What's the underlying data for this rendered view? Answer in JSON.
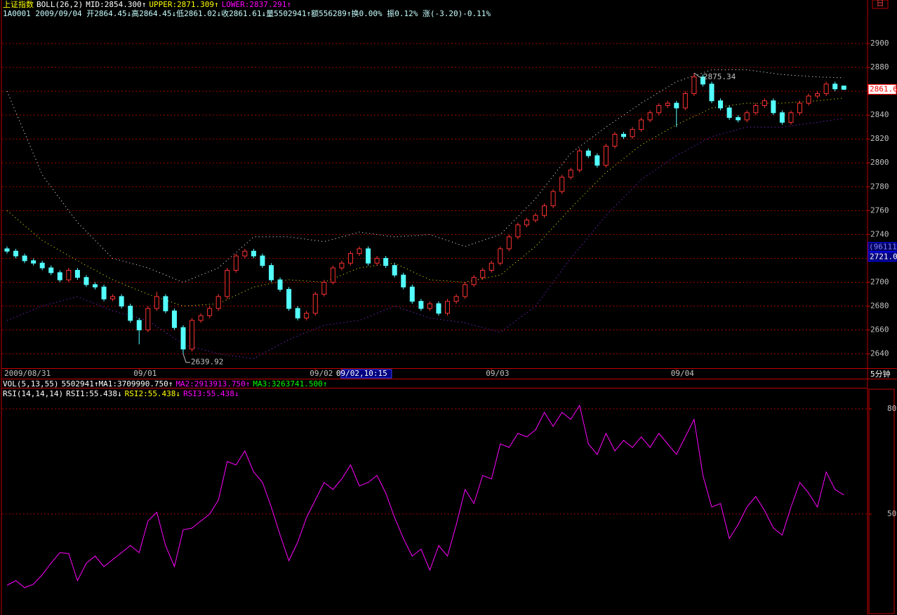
{
  "header": {
    "line1": [
      {
        "text": "上证指数",
        "color": "#ffff00"
      },
      {
        "text": "BOLL(26,2)",
        "color": "#ffffff"
      },
      {
        "text": "MID:2854.300↑",
        "color": "#ffffff"
      },
      {
        "text": "UPPER:2871.309↑",
        "color": "#ffff00"
      },
      {
        "text": "LOWER:2837.291↑",
        "color": "#ff00ff"
      }
    ],
    "line2": [
      {
        "text": "1A0001 2009/09/04 开2864.45↓高2864.45↓低2861.02↓收2861.61↓量5502941↑额556289↑换0.00% 振0.12% 涨(-3.20)-0.11%",
        "color": "#c8ffff"
      }
    ],
    "vol_line": [
      {
        "text": "VOL(5,13,55)",
        "color": "#ffffff"
      },
      {
        "text": "5502941↑MA1:3709990.750↑",
        "color": "#ffffff"
      },
      {
        "text": "MA2:2913913.750↑",
        "color": "#ff00ff"
      },
      {
        "text": "MA3:3263741.500↑",
        "color": "#00ff00"
      }
    ],
    "rsi_line": [
      {
        "text": "RSI(14,14,14)",
        "color": "#ffffff"
      },
      {
        "text": "RSI1:55.438↓",
        "color": "#ffffff"
      },
      {
        "text": "RSI2:55.438↓",
        "color": "#ffff00"
      },
      {
        "text": "RSI3:55.438↓",
        "color": "#ff00ff"
      }
    ],
    "period": "5分钟",
    "corner_button": "日"
  },
  "chart_data": [
    {
      "type": "candlestick",
      "up_color": "#ff3232",
      "down_color": "#54ffff",
      "grid": true,
      "ylim": [
        2628,
        2920
      ],
      "yticks": [
        2640,
        2660,
        2680,
        2700,
        2720,
        2740,
        2760,
        2780,
        2800,
        2820,
        2840,
        2860,
        2880,
        2900
      ],
      "categories": [
        "2009/08/31",
        null,
        null,
        null,
        null,
        null,
        null,
        null,
        null,
        null,
        null,
        null,
        null,
        null,
        null,
        "09/01",
        null,
        null,
        null,
        null,
        null,
        null,
        null,
        null,
        null,
        null,
        null,
        null,
        null,
        null,
        null,
        null,
        null,
        null,
        null,
        "09/02",
        null,
        null,
        "09/02,10:15",
        null,
        null,
        null,
        null,
        null,
        null,
        null,
        null,
        null,
        null,
        null,
        null,
        null,
        null,
        null,
        null,
        "09/03",
        null,
        null,
        null,
        null,
        null,
        null,
        null,
        null,
        null,
        null,
        null,
        null,
        null,
        null,
        null,
        null,
        null,
        null,
        null,
        null,
        "09/04",
        null,
        null,
        null,
        null,
        null,
        null,
        null,
        null,
        null,
        null,
        null,
        null,
        null,
        null,
        null,
        null,
        null,
        null,
        null
      ],
      "selected_index": 38,
      "ohlc": [
        [
          2728,
          2730,
          2724,
          2726
        ],
        [
          2726,
          2728,
          2720,
          2722
        ],
        [
          2722,
          2724,
          2716,
          2718
        ],
        [
          2718,
          2720,
          2714,
          2716
        ],
        [
          2716,
          2718,
          2710,
          2712
        ],
        [
          2712,
          2714,
          2706,
          2708
        ],
        [
          2708,
          2710,
          2700,
          2702
        ],
        [
          2702,
          2712,
          2700,
          2710
        ],
        [
          2710,
          2712,
          2702,
          2704
        ],
        [
          2704,
          2706,
          2696,
          2698
        ],
        [
          2698,
          2700,
          2694,
          2696
        ],
        [
          2696,
          2698,
          2684,
          2686
        ],
        [
          2686,
          2690,
          2684,
          2688
        ],
        [
          2688,
          2690,
          2678,
          2680
        ],
        [
          2680,
          2682,
          2666,
          2668
        ],
        [
          2668,
          2670,
          2648,
          2660
        ],
        [
          2660,
          2680,
          2658,
          2678
        ],
        [
          2678,
          2692,
          2676,
          2688
        ],
        [
          2688,
          2690,
          2674,
          2676
        ],
        [
          2676,
          2678,
          2660,
          2662
        ],
        [
          2662,
          2664,
          2639.92,
          2644
        ],
        [
          2644,
          2670,
          2642,
          2668
        ],
        [
          2668,
          2674,
          2666,
          2672
        ],
        [
          2672,
          2680,
          2670,
          2678
        ],
        [
          2678,
          2690,
          2676,
          2688
        ],
        [
          2688,
          2712,
          2686,
          2710
        ],
        [
          2710,
          2724,
          2708,
          2722
        ],
        [
          2722,
          2728,
          2720,
          2726
        ],
        [
          2726,
          2728,
          2720,
          2722
        ],
        [
          2722,
          2724,
          2712,
          2714
        ],
        [
          2714,
          2716,
          2700,
          2702
        ],
        [
          2702,
          2704,
          2692,
          2694
        ],
        [
          2694,
          2696,
          2676,
          2678
        ],
        [
          2678,
          2680,
          2668,
          2670
        ],
        [
          2670,
          2676,
          2668,
          2674
        ],
        [
          2674,
          2692,
          2672,
          2690
        ],
        [
          2690,
          2702,
          2688,
          2700
        ],
        [
          2700,
          2714,
          2698,
          2712
        ],
        [
          2712,
          2718,
          2710,
          2716
        ],
        [
          2716,
          2726,
          2714,
          2724
        ],
        [
          2724,
          2730,
          2722,
          2728
        ],
        [
          2728,
          2730,
          2714,
          2716
        ],
        [
          2716,
          2722,
          2714,
          2720
        ],
        [
          2720,
          2722,
          2712,
          2714
        ],
        [
          2714,
          2716,
          2704,
          2706
        ],
        [
          2706,
          2708,
          2694,
          2696
        ],
        [
          2696,
          2698,
          2682,
          2684
        ],
        [
          2684,
          2686,
          2676,
          2678
        ],
        [
          2678,
          2684,
          2676,
          2682
        ],
        [
          2682,
          2684,
          2672,
          2674
        ],
        [
          2674,
          2686,
          2672,
          2684
        ],
        [
          2684,
          2690,
          2682,
          2688
        ],
        [
          2688,
          2700,
          2686,
          2698
        ],
        [
          2698,
          2706,
          2696,
          2704
        ],
        [
          2704,
          2712,
          2702,
          2710
        ],
        [
          2710,
          2718,
          2708,
          2716
        ],
        [
          2716,
          2730,
          2714,
          2728
        ],
        [
          2728,
          2740,
          2726,
          2738
        ],
        [
          2738,
          2750,
          2736,
          2748
        ],
        [
          2748,
          2754,
          2746,
          2752
        ],
        [
          2752,
          2758,
          2750,
          2756
        ],
        [
          2756,
          2766,
          2754,
          2764
        ],
        [
          2764,
          2778,
          2762,
          2776
        ],
        [
          2776,
          2790,
          2774,
          2788
        ],
        [
          2788,
          2796,
          2786,
          2794
        ],
        [
          2794,
          2812,
          2792,
          2810
        ],
        [
          2810,
          2812,
          2804,
          2806
        ],
        [
          2806,
          2808,
          2796,
          2798
        ],
        [
          2798,
          2816,
          2796,
          2814
        ],
        [
          2814,
          2826,
          2812,
          2824
        ],
        [
          2824,
          2826,
          2820,
          2822
        ],
        [
          2822,
          2830,
          2820,
          2828
        ],
        [
          2828,
          2838,
          2826,
          2836
        ],
        [
          2836,
          2844,
          2834,
          2842
        ],
        [
          2842,
          2850,
          2840,
          2848
        ],
        [
          2848,
          2852,
          2846,
          2850
        ],
        [
          2850,
          2852,
          2830,
          2846
        ],
        [
          2846,
          2860,
          2844,
          2858
        ],
        [
          2858,
          2875.34,
          2856,
          2872
        ],
        [
          2872,
          2874,
          2864,
          2866
        ],
        [
          2866,
          2868,
          2850,
          2852
        ],
        [
          2852,
          2854,
          2844,
          2846
        ],
        [
          2846,
          2848,
          2836,
          2838
        ],
        [
          2838,
          2840,
          2834,
          2836
        ],
        [
          2836,
          2844,
          2834,
          2842
        ],
        [
          2842,
          2850,
          2840,
          2848
        ],
        [
          2848,
          2854,
          2846,
          2852
        ],
        [
          2852,
          2854,
          2840,
          2842
        ],
        [
          2842,
          2844,
          2832,
          2834
        ],
        [
          2834,
          2844,
          2832,
          2842
        ],
        [
          2842,
          2852,
          2840,
          2850
        ],
        [
          2850,
          2858,
          2848,
          2856
        ],
        [
          2856,
          2860,
          2854,
          2858
        ],
        [
          2858,
          2868,
          2856,
          2866
        ],
        [
          2866,
          2868,
          2860,
          2862
        ],
        [
          2864.45,
          2864.45,
          2861.02,
          2861.61
        ]
      ],
      "overlay_x": [
        0,
        4,
        8,
        12,
        16,
        20,
        24,
        28,
        32,
        36,
        40,
        44,
        48,
        52,
        56,
        60,
        64,
        68,
        72,
        76,
        80,
        84,
        88,
        92,
        95
      ],
      "overlays": [
        {
          "color": "#ffffff",
          "values": [
            2860,
            2790,
            2750,
            2720,
            2712,
            2700,
            2712,
            2738,
            2738,
            2734,
            2742,
            2738,
            2740,
            2730,
            2740,
            2770,
            2808,
            2830,
            2850,
            2868,
            2878,
            2878,
            2874,
            2872,
            2871.309
          ]
        },
        {
          "color": "#ffff00",
          "values": [
            2760,
            2735,
            2718,
            2702,
            2690,
            2680,
            2682,
            2696,
            2702,
            2700,
            2712,
            2716,
            2702,
            2700,
            2706,
            2730,
            2762,
            2792,
            2815,
            2832,
            2846,
            2850,
            2850,
            2852,
            2854.3
          ]
        },
        {
          "color": "#9933ff",
          "values": [
            2668,
            2680,
            2688,
            2676,
            2668,
            2648,
            2640,
            2636,
            2652,
            2664,
            2668,
            2680,
            2670,
            2666,
            2658,
            2680,
            2720,
            2756,
            2786,
            2806,
            2822,
            2830,
            2830,
            2834,
            2837.291
          ]
        }
      ],
      "last_price": 2861.6,
      "crosshair": {
        "value": 2721.04,
        "volume_label": "(96111)"
      }
    },
    {
      "type": "line",
      "color": "#ff00ff",
      "grid": true,
      "ylim": [
        21.2,
        86
      ],
      "yticks": [
        50,
        80
      ],
      "values": [
        29.7,
        31,
        29,
        30,
        32.7,
        36,
        39,
        38.7,
        31,
        36,
        38,
        35,
        37,
        39,
        41,
        39,
        48,
        50.5,
        41,
        35,
        45.5,
        46,
        48,
        50,
        54,
        65,
        64,
        68,
        62,
        59,
        52,
        44,
        36.7,
        42,
        49,
        54,
        59,
        57,
        60,
        64,
        58,
        59,
        61,
        56,
        49,
        43,
        38,
        40,
        34,
        41,
        38,
        47,
        57,
        53,
        61,
        60,
        70,
        69,
        73,
        72,
        74,
        79,
        75,
        79,
        77,
        81,
        70,
        67,
        73,
        68,
        71,
        69,
        72,
        69,
        73,
        70,
        67,
        72,
        77,
        61,
        52,
        53,
        43,
        47,
        52,
        55,
        51,
        46,
        44,
        52,
        59,
        56,
        52,
        62,
        57,
        55.438
      ]
    }
  ]
}
